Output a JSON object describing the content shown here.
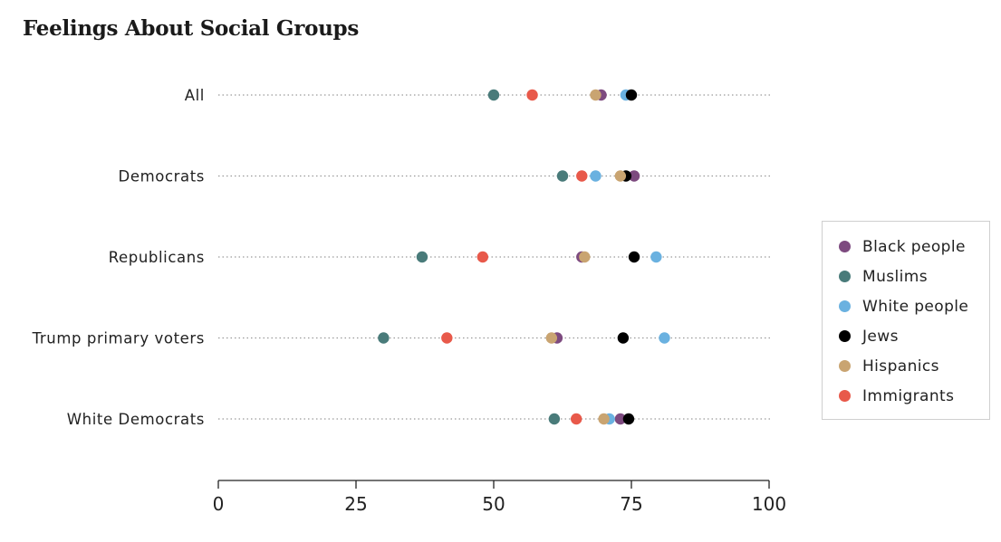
{
  "chart_data": {
    "type": "scatter",
    "title": "Feelings About Social Groups",
    "categories": [
      "All",
      "Democrats",
      "Republicans",
      "Trump primary voters",
      "White Democrats"
    ],
    "xlim": [
      0,
      100
    ],
    "xticks": [
      0,
      25,
      50,
      75,
      100
    ],
    "xlabel": "",
    "ylabel": "",
    "grid": "dotted horizontal guide per row",
    "legend_position": "right",
    "series": [
      {
        "name": "Black people",
        "color": "#7d4a7f",
        "values": [
          69.5,
          75.5,
          66,
          61.5,
          73
        ]
      },
      {
        "name": "Muslims",
        "color": "#497b7a",
        "values": [
          50,
          62.5,
          37,
          30,
          61
        ]
      },
      {
        "name": "White people",
        "color": "#6ab1e0",
        "values": [
          74,
          68.5,
          79.5,
          81,
          71
        ]
      },
      {
        "name": "Jews",
        "color": "#000000",
        "values": [
          75,
          74,
          75.5,
          73.5,
          74.5
        ]
      },
      {
        "name": "Hispanics",
        "color": "#c9a471",
        "values": [
          68.5,
          73,
          66.5,
          60.5,
          70
        ]
      },
      {
        "name": "Immigrants",
        "color": "#e8594a",
        "values": [
          57,
          66,
          48,
          41.5,
          65
        ]
      }
    ]
  }
}
